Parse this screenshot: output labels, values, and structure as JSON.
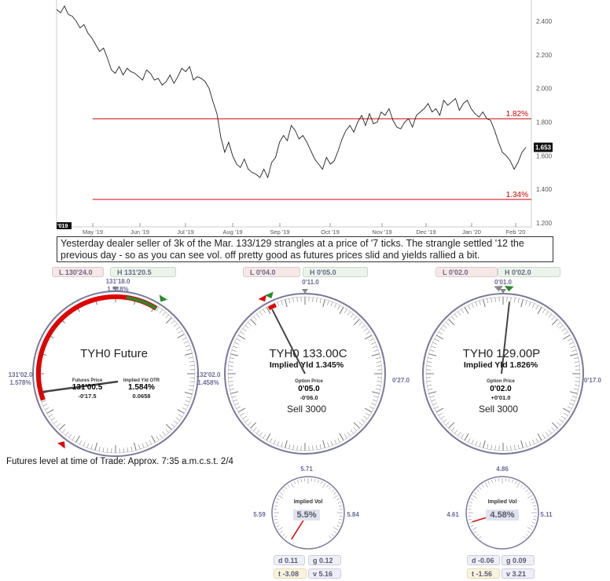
{
  "chart_data": {
    "type": "line",
    "x_ticks": [
      "May '19",
      "Jun '19",
      "Jul '19",
      "Aug '19",
      "Sep '19",
      "Oct '19",
      "Nov '19",
      "Dec '19",
      "Jan '20",
      "Feb '20"
    ],
    "y_ticks": [
      "2.400",
      "2.200",
      "2.000",
      "1.800",
      "1.600",
      "1.400",
      "1.200"
    ],
    "ylim": [
      1.2,
      2.5
    ],
    "year_tag": "2019",
    "series": [
      {
        "values": [
          2.47,
          2.45,
          2.49,
          2.44,
          2.43,
          2.4,
          2.36,
          2.38,
          2.33,
          2.3,
          2.26,
          2.22,
          2.24,
          2.18,
          2.11,
          2.09,
          2.13,
          2.08,
          2.12,
          2.1,
          2.09,
          2.07,
          2.05,
          2.11,
          2.09,
          2.05,
          2.06,
          2.02,
          2.04,
          2.08,
          2.03,
          2.07,
          2.12,
          2.1,
          2.13,
          2.05,
          2.07,
          2.06,
          2.04,
          2.0,
          1.92,
          1.85,
          1.71,
          1.62,
          1.68,
          1.6,
          1.55,
          1.53,
          1.58,
          1.52,
          1.5,
          1.49,
          1.47,
          1.52,
          1.47,
          1.56,
          1.59,
          1.68,
          1.72,
          1.69,
          1.78,
          1.75,
          1.7,
          1.72,
          1.68,
          1.63,
          1.58,
          1.55,
          1.52,
          1.59,
          1.55,
          1.57,
          1.63,
          1.7,
          1.75,
          1.78,
          1.74,
          1.8,
          1.84,
          1.78,
          1.85,
          1.79,
          1.8,
          1.86,
          1.84,
          1.88,
          1.81,
          1.77,
          1.76,
          1.8,
          1.82,
          1.77,
          1.84,
          1.86,
          1.88,
          1.91,
          1.86,
          1.88,
          1.84,
          1.93,
          1.9,
          1.92,
          1.94,
          1.87,
          1.91,
          1.93,
          1.88,
          1.85,
          1.83,
          1.86,
          1.82,
          1.81,
          1.75,
          1.68,
          1.62,
          1.6,
          1.57,
          1.52,
          1.56,
          1.62,
          1.65
        ]
      }
    ],
    "ref_lines": [
      {
        "value": 1.82,
        "label": "1.82%"
      },
      {
        "value": 1.34,
        "label": "1.34%"
      }
    ],
    "last_value": "1.653"
  },
  "caption": "Yesterday dealer seller of 3k of the Mar. 133/129 strangles at a price of '7 ticks. The strangle settled '12 the previous day - so as you can see vol. off pretty good as futures prices slid and yields rallied a bit.",
  "note": "Futures level at time of Trade: Approx. 7:35 a.m.c.s.t. 2/4",
  "gauges": [
    {
      "id": "future",
      "low": "L 130'24.0",
      "high": "H 131'20.5",
      "top_label": "131'18.0",
      "top_sub": "1.518%",
      "left_label": "131'02.0",
      "left_sub": "1.578%",
      "right_label": "132'02.0",
      "right_sub": "1.458%",
      "title": "TYH0 Future",
      "price_label": "Futures Price",
      "price": "131'00.5",
      "price_chg": "-0'17.5",
      "yld_label": "Implied Yld OTR",
      "yld": "1.584%",
      "yld_chg": "0.0658",
      "arc_color": "#e00000",
      "high_color": "#2a8a2a",
      "needle_deg": 256
    },
    {
      "id": "call",
      "low": "L 0'04.0",
      "high": "H 0'05.0",
      "top_label": "0'11.0",
      "right_label": "0'27.0",
      "title": "TYH0 133.00C",
      "implied": "Implied Yld 1.345%",
      "price_label": "Option Price",
      "price": "0'05.0",
      "price_chg": "-0'06.0",
      "sell": "Sell 3000",
      "needle_deg": 333,
      "vol": {
        "top": "5.71",
        "left": "5.59",
        "right": "5.84",
        "label": "Implied Vol",
        "value": "5.5%",
        "needle_deg": 212
      },
      "greeks": {
        "d": "0.11",
        "g": "0.12",
        "t": "-3.08",
        "v": "5.16"
      }
    },
    {
      "id": "put",
      "low": "L 0'02.0",
      "high": "H 0'02.0",
      "top_label": "0'01.0",
      "right_label": "0'17.0",
      "title": "TYH0 129.00P",
      "implied": "Implied Yld 1.826%",
      "price_label": "Option Price",
      "price": "0'02.0",
      "price_chg": "+0'01.0",
      "sell": "Sell 3000",
      "needle_deg": 5,
      "vol": {
        "top": "4.86",
        "left": "4.61",
        "right": "5.11",
        "label": "Implied Vol",
        "value": "4.58%",
        "needle_deg": 253
      },
      "greeks": {
        "d": "-0.06",
        "g": "0.09",
        "t": "-1.56",
        "v": "3.21"
      }
    }
  ]
}
